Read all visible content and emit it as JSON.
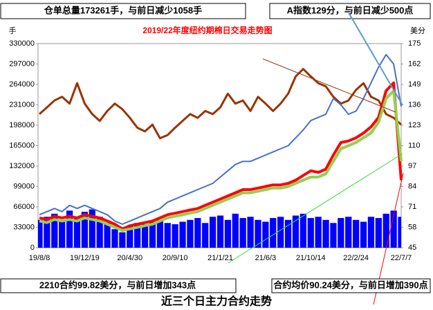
{
  "chart_data": {
    "type": "combo",
    "title": "2019/22年度纽约期棉日交易走势图",
    "top_left_note": "仓单总量173261手，与前日减少1058手",
    "top_right_note": "A指数129分，与前日减少500点",
    "bottom_left_note": "2210合约99.82美分，与前日增加343点",
    "bottom_right_note": "合约均价90.24美分，与前日增加390点",
    "footer_title": "近三个日主力合约走势",
    "y_label": "手",
    "y2_label": "美分",
    "categories": [
      "19/8/8",
      null,
      null,
      null,
      null,
      null,
      "19/12/19",
      null,
      null,
      null,
      null,
      null,
      "20/4/30",
      null,
      null,
      null,
      null,
      null,
      "20/9/10",
      null,
      null,
      null,
      null,
      null,
      "21/1/21",
      null,
      null,
      null,
      null,
      null,
      "21/6/3",
      null,
      null,
      null,
      null,
      null,
      "21/10/14",
      null,
      null,
      null,
      null,
      null,
      "22/2/24",
      null,
      null,
      null,
      null,
      null,
      "22/7/7"
    ],
    "ylim": [
      0,
      330000
    ],
    "yticks": [
      0,
      33000,
      66000,
      99000,
      132000,
      165000,
      198000,
      231000,
      264000,
      297000,
      330000
    ],
    "y2lim": [
      45,
      175
    ],
    "y2ticks": [
      45,
      58,
      71,
      84,
      97,
      110,
      123,
      136,
      149,
      162,
      175
    ],
    "series": [
      {
        "type": "bar",
        "color": "#0000ff",
        "values": [
          45000,
          50000,
          55000,
          42000,
          60000,
          48000,
          58000,
          62000,
          50000,
          40000,
          30000,
          25000,
          35000,
          40000,
          38000,
          42000,
          45000,
          40000,
          38000,
          42000,
          45000,
          48000,
          40000,
          50000,
          52000,
          45000,
          55000,
          48000,
          50000,
          45000,
          42000,
          48000,
          50000,
          45000,
          52000,
          55000,
          48000,
          50000,
          45000,
          40000,
          48000,
          50000,
          45000,
          42000,
          50000,
          48000,
          55000,
          60000,
          50000
        ]
      },
      {
        "type": "line",
        "color": "#993300",
        "width": 3,
        "values": [
          216000,
          227000,
          238000,
          244000,
          233000,
          266000,
          233000,
          216000,
          205000,
          221000,
          233000,
          224000,
          210000,
          194000,
          188000,
          199000,
          177000,
          182000,
          194000,
          205000,
          216000,
          210000,
          221000,
          216000,
          227000,
          249000,
          233000,
          238000,
          221000,
          244000,
          233000,
          221000,
          233000,
          249000,
          277000,
          289000,
          277000,
          266000,
          261000,
          244000,
          233000,
          238000,
          255000,
          266000,
          244000,
          238000,
          216000,
          210000,
          199000
        ]
      },
      {
        "type": "line",
        "axis": "y2",
        "color": "#4472c4",
        "width": 2,
        "values": [
          66,
          68,
          70,
          68,
          72,
          70,
          72,
          70,
          68,
          66,
          62,
          60,
          62,
          64,
          66,
          68,
          70,
          74,
          76,
          78,
          80,
          82,
          84,
          86,
          90,
          94,
          98,
          100,
          100,
          102,
          104,
          106,
          108,
          110,
          115,
          120,
          126,
          128,
          130,
          140,
          136,
          130,
          132,
          140,
          150,
          160,
          168,
          162,
          135
        ]
      },
      {
        "type": "line",
        "axis": "y2",
        "color": "#ff0000",
        "width": 4,
        "values": [
          64,
          63,
          65,
          64,
          65,
          64,
          66,
          65,
          64,
          62,
          60,
          57,
          59,
          60,
          61,
          62,
          64,
          66,
          67,
          68,
          69,
          70,
          72,
          74,
          76,
          78,
          80,
          82,
          82,
          83,
          84,
          85,
          85,
          86,
          88,
          91,
          94,
          93,
          95,
          104,
          112,
          113,
          115,
          118,
          122,
          128,
          145,
          150,
          88
        ]
      },
      {
        "type": "line",
        "axis": "y2",
        "color": "#92d050",
        "width": 4,
        "values": [
          62,
          61,
          63,
          62,
          63,
          62,
          64,
          63,
          62,
          60,
          58,
          56,
          57,
          58,
          59,
          60,
          62,
          64,
          65,
          66,
          67,
          68,
          70,
          72,
          74,
          76,
          78,
          80,
          80,
          81,
          82,
          83,
          83,
          84,
          86,
          88,
          90,
          90,
          92,
          100,
          108,
          110,
          112,
          115,
          118,
          125,
          140,
          145,
          100
        ]
      }
    ]
  }
}
